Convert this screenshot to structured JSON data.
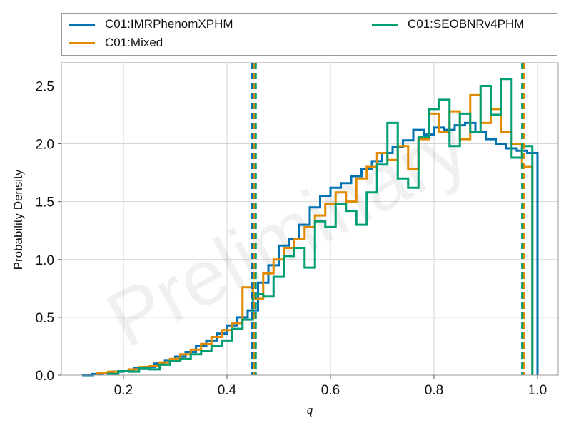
{
  "chart_data": {
    "type": "step-histogram",
    "xlabel": "q",
    "ylabel": "Probability Density",
    "xlim": [
      0.08,
      1.04
    ],
    "ylim": [
      0,
      2.7
    ],
    "xticks": [
      0.2,
      0.4,
      0.6,
      0.8,
      1.0
    ],
    "xtick_labels": [
      "0.2",
      "0.4",
      "0.6",
      "0.8",
      "1.0"
    ],
    "yticks": [
      0.0,
      0.5,
      1.0,
      1.5,
      2.0,
      2.5
    ],
    "ytick_labels": [
      "0.0",
      "0.5",
      "1.0",
      "1.5",
      "2.0",
      "2.5"
    ],
    "grid": true,
    "legend_position": "top, outside plot",
    "watermark": "Preliminary",
    "series": [
      {
        "name": "C01:IMRPhenomXPHM",
        "color": "#0072b2",
        "edges": [
          0.12,
          0.14,
          0.16,
          0.18,
          0.2,
          0.22,
          0.24,
          0.26,
          0.28,
          0.3,
          0.32,
          0.34,
          0.36,
          0.38,
          0.4,
          0.42,
          0.44,
          0.46,
          0.48,
          0.5,
          0.52,
          0.54,
          0.56,
          0.58,
          0.6,
          0.62,
          0.64,
          0.66,
          0.68,
          0.7,
          0.72,
          0.74,
          0.76,
          0.78,
          0.8,
          0.82,
          0.84,
          0.86,
          0.88,
          0.9,
          0.92,
          0.94,
          0.96,
          0.98,
          1.0
        ],
        "values": [
          0.0,
          0.01,
          0.02,
          0.03,
          0.04,
          0.06,
          0.07,
          0.1,
          0.13,
          0.16,
          0.2,
          0.25,
          0.3,
          0.36,
          0.43,
          0.5,
          0.56,
          0.8,
          0.95,
          1.12,
          1.18,
          1.3,
          1.45,
          1.55,
          1.62,
          1.66,
          1.72,
          1.78,
          1.85,
          1.92,
          1.97,
          2.03,
          2.12,
          2.08,
          2.14,
          2.12,
          2.16,
          2.18,
          2.1,
          2.04,
          2.0,
          1.96,
          1.94,
          1.92
        ]
      },
      {
        "name": "C01:Mixed",
        "color": "#e08a00",
        "edges": [
          0.15,
          0.17,
          0.19,
          0.21,
          0.23,
          0.25,
          0.27,
          0.29,
          0.31,
          0.33,
          0.35,
          0.37,
          0.39,
          0.41,
          0.43,
          0.45,
          0.47,
          0.49,
          0.51,
          0.53,
          0.55,
          0.57,
          0.59,
          0.61,
          0.63,
          0.65,
          0.67,
          0.69,
          0.71,
          0.73,
          0.75,
          0.77,
          0.79,
          0.81,
          0.83,
          0.85,
          0.87,
          0.89,
          0.91,
          0.93,
          0.95,
          0.97,
          0.99
        ],
        "values": [
          0.02,
          0.03,
          0.04,
          0.05,
          0.07,
          0.08,
          0.11,
          0.14,
          0.18,
          0.22,
          0.27,
          0.33,
          0.39,
          0.45,
          0.76,
          0.66,
          0.88,
          1.0,
          1.1,
          1.18,
          1.28,
          1.38,
          1.48,
          1.58,
          1.5,
          1.7,
          1.8,
          1.92,
          1.86,
          1.98,
          1.78,
          2.04,
          2.26,
          2.1,
          2.28,
          2.04,
          2.42,
          2.18,
          2.3,
          2.1,
          2.0,
          1.8
        ]
      },
      {
        "name": "C01:SEOBNRv4PHM",
        "color": "#009e73",
        "edges": [
          0.17,
          0.19,
          0.21,
          0.23,
          0.25,
          0.27,
          0.29,
          0.31,
          0.33,
          0.35,
          0.37,
          0.39,
          0.41,
          0.43,
          0.45,
          0.47,
          0.49,
          0.51,
          0.53,
          0.55,
          0.57,
          0.59,
          0.61,
          0.63,
          0.65,
          0.67,
          0.69,
          0.71,
          0.73,
          0.75,
          0.77,
          0.79,
          0.81,
          0.83,
          0.85,
          0.87,
          0.89,
          0.91,
          0.93,
          0.95,
          0.97,
          0.99
        ],
        "values": [
          0.01,
          0.04,
          0.03,
          0.06,
          0.05,
          0.09,
          0.12,
          0.14,
          0.18,
          0.21,
          0.25,
          0.3,
          0.4,
          0.48,
          0.7,
          0.68,
          0.85,
          1.03,
          1.1,
          0.93,
          1.33,
          1.28,
          1.48,
          1.42,
          1.3,
          1.58,
          1.82,
          2.18,
          1.7,
          1.62,
          2.06,
          2.3,
          2.38,
          1.98,
          2.26,
          2.1,
          2.5,
          2.25,
          2.56,
          1.88,
          1.98
        ]
      }
    ],
    "vlines": [
      {
        "series": "C01:IMRPhenomXPHM",
        "color": "#0072b2",
        "x": [
          0.4485,
          0.9725
        ]
      },
      {
        "series": "C01:Mixed",
        "color": "#e08a00",
        "x": [
          0.4525,
          0.9745
        ]
      },
      {
        "series": "C01:SEOBNRv4PHM",
        "color": "#009e73",
        "x": [
          0.4555,
          0.9705
        ]
      }
    ]
  },
  "legend": {
    "item_1": "C01:IMRPhenomXPHM",
    "item_2": "C01:Mixed",
    "item_3": "C01:SEOBNRv4PHM"
  }
}
